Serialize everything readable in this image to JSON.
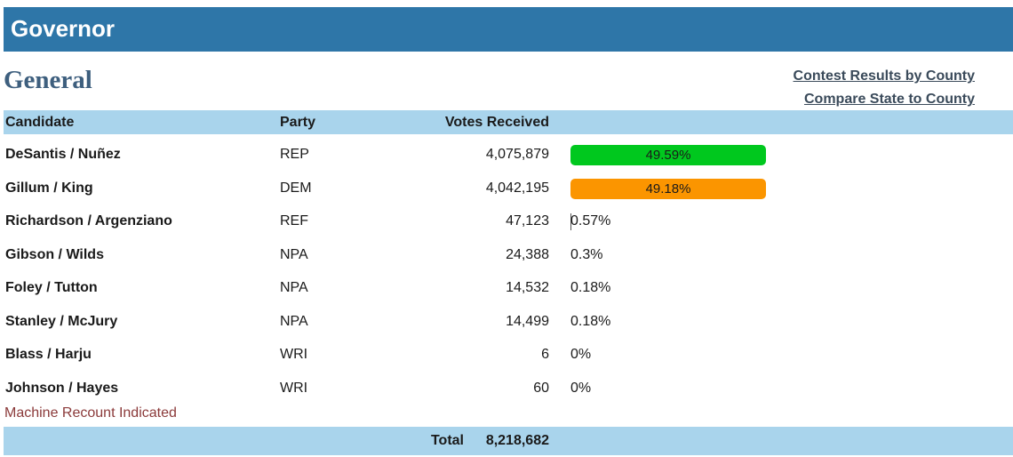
{
  "header": {
    "title": "Governor"
  },
  "subtitle": "General",
  "links": {
    "county_results": "Contest Results by County",
    "compare": "Compare State to County"
  },
  "table": {
    "headers": {
      "candidate": "Candidate",
      "party": "Party",
      "votes": "Votes Received"
    },
    "rows": [
      {
        "name": "DeSantis / Nuñez",
        "party": "REP",
        "votes": "4,075,879",
        "percent": "49.59%",
        "bar_color": "#00c81e",
        "bar": true
      },
      {
        "name": "Gillum / King",
        "party": "DEM",
        "votes": "4,042,195",
        "percent": "49.18%",
        "bar_color": "#fb9500",
        "bar": true
      },
      {
        "name": "Richardson / Argenziano",
        "party": "REF",
        "votes": "47,123",
        "percent": "0.57%",
        "bar": false
      },
      {
        "name": "Gibson / Wilds",
        "party": "NPA",
        "votes": "24,388",
        "percent": "0.3%",
        "bar": false
      },
      {
        "name": "Foley / Tutton",
        "party": "NPA",
        "votes": "14,532",
        "percent": "0.18%",
        "bar": false
      },
      {
        "name": "Stanley / McJury",
        "party": "NPA",
        "votes": "14,499",
        "percent": "0.18%",
        "bar": false
      },
      {
        "name": "Blass / Harju",
        "party": "WRI",
        "votes": "6",
        "percent": "0%",
        "bar": false
      },
      {
        "name": "Johnson / Hayes",
        "party": "WRI",
        "votes": "60",
        "percent": "0%",
        "bar": false
      }
    ]
  },
  "note": "Machine Recount Indicated",
  "footer": {
    "total_label": "Total",
    "total_value": "8,218,682"
  }
}
